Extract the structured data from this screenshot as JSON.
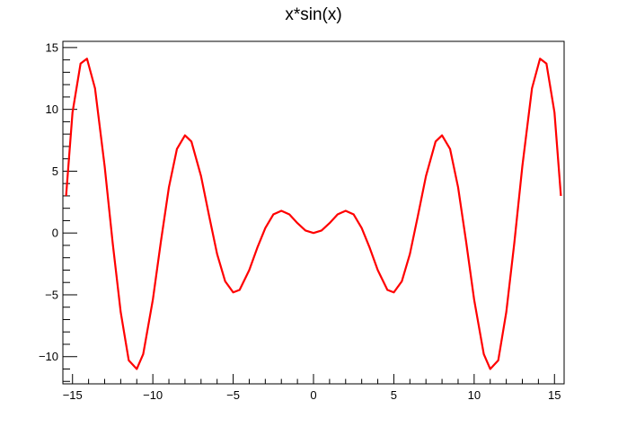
{
  "chart_data": {
    "type": "line",
    "title": "x*sin(x)",
    "xlabel": "",
    "ylabel": "",
    "xlim": [
      -15.6,
      15.6
    ],
    "ylim": [
      -12.2,
      15.5
    ],
    "grid": false,
    "line_color": "#ff0000",
    "x_ticks": [
      -15,
      -10,
      -5,
      0,
      5,
      10,
      15
    ],
    "x_tick_labels": [
      "−15",
      "−10",
      "−5",
      "0",
      "5",
      "10",
      "15"
    ],
    "y_ticks": [
      -10,
      -5,
      0,
      5,
      10,
      15
    ],
    "y_tick_labels": [
      "−10",
      "−5",
      "0",
      "5",
      "10",
      "15"
    ],
    "series": [
      {
        "x": [
          -15.4,
          -15.0,
          -14.5,
          -14.1,
          -13.6,
          -13.0,
          -12.5,
          -12.0,
          -11.5,
          -11.0,
          -10.6,
          -10.0,
          -9.5,
          -9.0,
          -8.5,
          -8.0,
          -7.6,
          -7.0,
          -6.5,
          -6.0,
          -5.5,
          -5.0,
          -4.6,
          -4.0,
          -3.5,
          -3.0,
          -2.5,
          -2.0,
          -1.5,
          -1.0,
          -0.5,
          0.0,
          0.5,
          1.0,
          1.5,
          2.0,
          2.5,
          3.0,
          3.5,
          4.0,
          4.6,
          5.0,
          5.5,
          6.0,
          6.5,
          7.0,
          7.6,
          8.0,
          8.5,
          9.0,
          9.5,
          10.0,
          10.6,
          11.0,
          11.5,
          12.0,
          12.5,
          13.0,
          13.6,
          14.1,
          14.5,
          15.0,
          15.4
        ],
        "y": [
          3.0,
          9.75,
          13.7,
          14.1,
          11.7,
          5.4,
          -0.8,
          -6.4,
          -10.3,
          -11.0,
          -9.8,
          -5.4,
          -0.7,
          3.7,
          6.8,
          7.9,
          7.4,
          4.6,
          1.4,
          -1.7,
          -3.9,
          -4.8,
          -4.6,
          -3.0,
          -1.2,
          0.4,
          1.5,
          1.8,
          1.5,
          0.8,
          0.2,
          0.0,
          0.2,
          0.8,
          1.5,
          1.8,
          1.5,
          0.4,
          -1.2,
          -3.0,
          -4.6,
          -4.8,
          -3.9,
          -1.7,
          1.4,
          4.6,
          7.4,
          7.9,
          6.8,
          3.7,
          -0.7,
          -5.4,
          -9.8,
          -11.0,
          -10.3,
          -6.4,
          -0.8,
          5.4,
          11.7,
          14.1,
          13.7,
          9.75,
          3.0
        ]
      }
    ]
  }
}
